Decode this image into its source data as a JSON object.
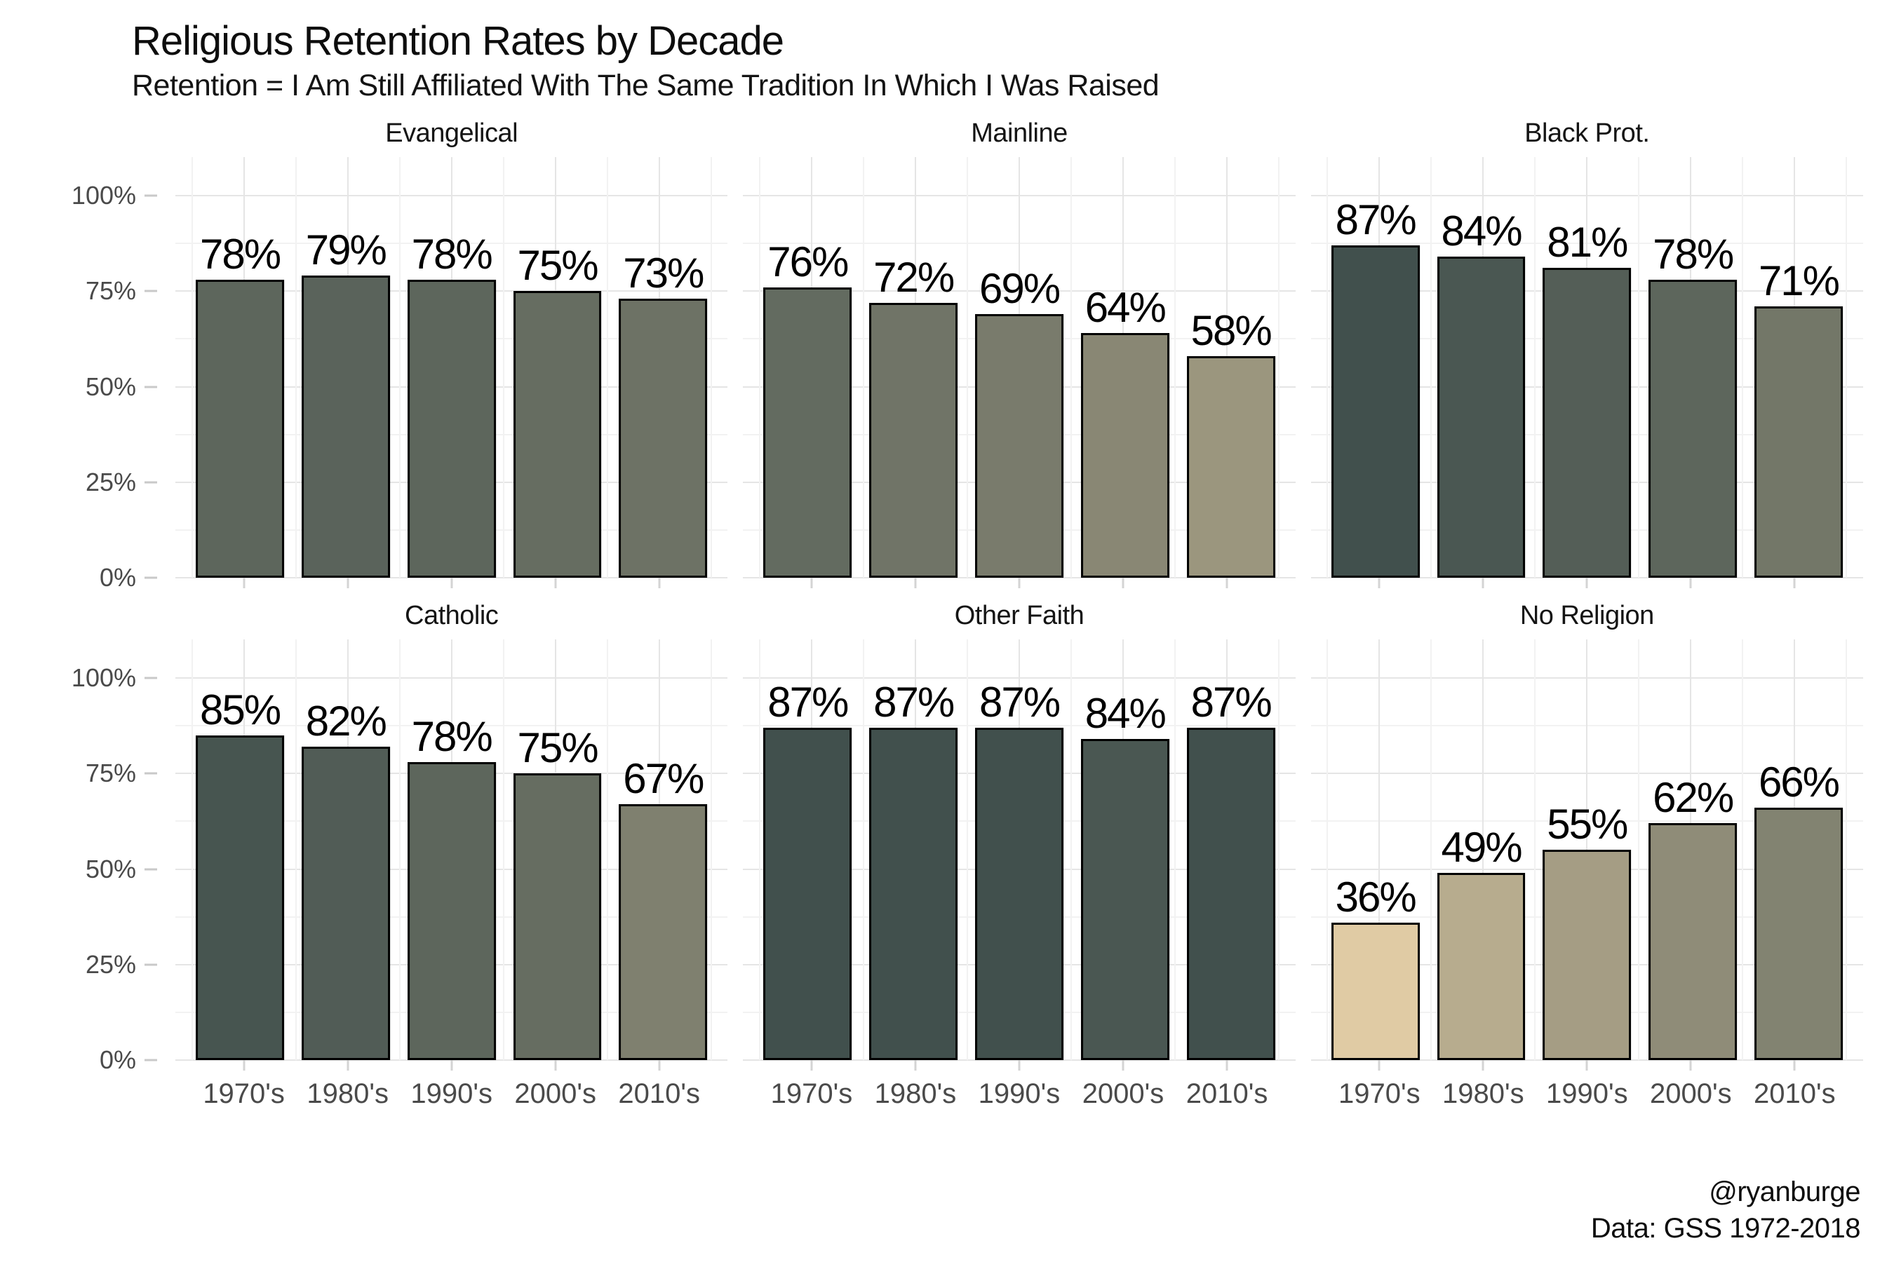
{
  "title": "Religious Retention Rates by Decade",
  "subtitle": "Retention = I Am Still Affiliated With The Same Tradition In Which I Was Raised",
  "footer": {
    "credit": "@ryanburge",
    "source": "Data: GSS 1972-2018"
  },
  "chart_data": {
    "type": "bar",
    "title": "Religious Retention Rates by Decade",
    "subtitle": "Retention = I Am Still Affiliated With The Same Tradition In Which I Was Raised",
    "categories": [
      "1970's",
      "1980's",
      "1990's",
      "2000's",
      "2010's"
    ],
    "facets": [
      {
        "name": "Evangelical",
        "values": [
          78,
          79,
          78,
          75,
          73
        ]
      },
      {
        "name": "Mainline",
        "values": [
          76,
          72,
          69,
          64,
          58
        ]
      },
      {
        "name": "Black Prot.",
        "values": [
          87,
          84,
          81,
          78,
          71
        ]
      },
      {
        "name": "Catholic",
        "values": [
          85,
          82,
          78,
          75,
          67
        ]
      },
      {
        "name": "Other Faith",
        "values": [
          87,
          87,
          87,
          84,
          87
        ]
      },
      {
        "name": "No Religion",
        "values": [
          36,
          49,
          55,
          62,
          66
        ]
      }
    ],
    "value_suffix": "%",
    "bar_labels": true,
    "ylim": [
      0,
      100
    ],
    "y_axis_headroom_units": 110,
    "y_ticks": [
      0,
      25,
      50,
      75,
      100
    ],
    "y_tick_labels": [
      "0%",
      "25%",
      "50%",
      "75%",
      "100%"
    ],
    "y_minor_step": 12.5,
    "grid": true,
    "legend": false,
    "layout": {
      "rows": 2,
      "cols": 3,
      "x_labels_bottom_row_only": true,
      "y_labels_left_column_only": true
    },
    "style": {
      "fill_gradient_low": "#e0cba4",
      "fill_gradient_high": "#41504d",
      "fill_domain": [
        36,
        87
      ],
      "bar_stroke": "#000000",
      "grid_major": "#e5e5e5",
      "grid_minor": "#f2f2f2",
      "axis_text": "#4a4a4a",
      "tick_mark": "#c9c9c9",
      "label_text": "#000000",
      "background": "#ffffff"
    }
  }
}
